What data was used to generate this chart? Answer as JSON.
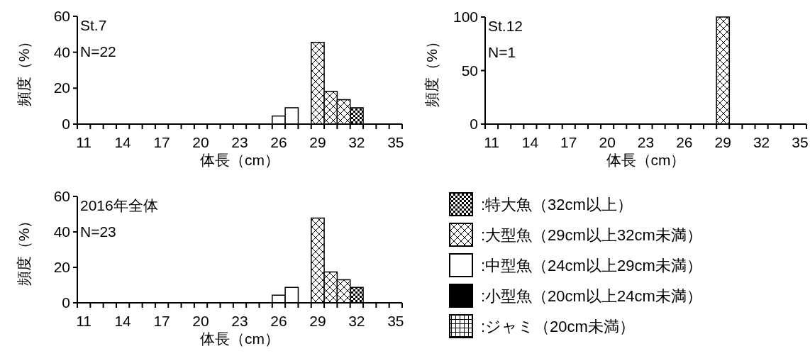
{
  "chart_data": [
    {
      "type": "bar",
      "xlabel": "体長（cm）",
      "ylabel": "頻度（%）",
      "annotations": [
        "St.7",
        "N=22"
      ],
      "categories": [
        "11",
        null,
        null,
        "14",
        null,
        null,
        "17",
        null,
        null,
        "20",
        null,
        null,
        "23",
        null,
        null,
        "26",
        null,
        null,
        "29",
        null,
        null,
        "32",
        null,
        null,
        "35"
      ],
      "ylim": [
        0,
        60
      ],
      "yticks": [
        0,
        20,
        40,
        60
      ],
      "series": [
        {
          "color": "#000000",
          "values": [
            null,
            null,
            null,
            null,
            null,
            null,
            null,
            null,
            null,
            null,
            null,
            null,
            null,
            null,
            null,
            null,
            null,
            null,
            null,
            null,
            null,
            9.1,
            null,
            null,
            null
          ]
        },
        {
          "color": "#000000",
          "values": [
            null,
            null,
            null,
            null,
            null,
            null,
            null,
            null,
            null,
            null,
            null,
            null,
            null,
            null,
            null,
            null,
            null,
            null,
            45.5,
            18.2,
            13.6,
            null,
            null,
            null,
            null
          ]
        },
        {
          "color": "#ffffff",
          "values": [
            null,
            null,
            null,
            null,
            null,
            null,
            null,
            null,
            null,
            null,
            null,
            null,
            null,
            null,
            null,
            4.5,
            9.1,
            null,
            null,
            null,
            null,
            null,
            null,
            null,
            null
          ]
        },
        {
          "color": "#000000",
          "values": [
            null,
            null,
            null,
            null,
            null,
            null,
            null,
            null,
            null,
            null,
            null,
            null,
            null,
            null,
            null,
            null,
            null,
            null,
            null,
            null,
            null,
            null,
            null,
            null,
            null
          ]
        },
        {
          "color": "#000000",
          "values": [
            null,
            null,
            null,
            null,
            null,
            null,
            null,
            null,
            null,
            null,
            null,
            null,
            null,
            null,
            null,
            null,
            null,
            null,
            null,
            null,
            null,
            null,
            null,
            null,
            null
          ]
        }
      ]
    },
    {
      "type": "bar",
      "xlabel": "体長（cm）",
      "ylabel": "頻度（%）",
      "annotations": [
        "St.12",
        "N=1"
      ],
      "categories": [
        "11",
        null,
        null,
        "14",
        null,
        null,
        "17",
        null,
        null,
        "20",
        null,
        null,
        "23",
        null,
        null,
        "26",
        null,
        null,
        "29",
        null,
        null,
        "32",
        null,
        null,
        "35"
      ],
      "ylim": [
        0,
        100
      ],
      "yticks": [
        0,
        50,
        100
      ],
      "series": [
        {
          "color": "#000000",
          "values": [
            null,
            null,
            null,
            null,
            null,
            null,
            null,
            null,
            null,
            null,
            null,
            null,
            null,
            null,
            null,
            null,
            null,
            null,
            null,
            null,
            null,
            null,
            null,
            null,
            null
          ]
        },
        {
          "color": "#000000",
          "values": [
            null,
            null,
            null,
            null,
            null,
            null,
            null,
            null,
            null,
            null,
            null,
            null,
            null,
            null,
            null,
            null,
            null,
            null,
            100,
            null,
            null,
            null,
            null,
            null,
            null
          ]
        },
        {
          "color": "#ffffff",
          "values": [
            null,
            null,
            null,
            null,
            null,
            null,
            null,
            null,
            null,
            null,
            null,
            null,
            null,
            null,
            null,
            null,
            null,
            null,
            null,
            null,
            null,
            null,
            null,
            null,
            null
          ]
        },
        {
          "color": "#000000",
          "values": [
            null,
            null,
            null,
            null,
            null,
            null,
            null,
            null,
            null,
            null,
            null,
            null,
            null,
            null,
            null,
            null,
            null,
            null,
            null,
            null,
            null,
            null,
            null,
            null,
            null
          ]
        },
        {
          "color": "#000000",
          "values": [
            null,
            null,
            null,
            null,
            null,
            null,
            null,
            null,
            null,
            null,
            null,
            null,
            null,
            null,
            null,
            null,
            null,
            null,
            null,
            null,
            null,
            null,
            null,
            null,
            null
          ]
        }
      ]
    },
    {
      "type": "bar",
      "xlabel": "体長（cm）",
      "ylabel": "頻度（%）",
      "annotations": [
        "2016年全体",
        "N=23"
      ],
      "categories": [
        "11",
        null,
        null,
        "14",
        null,
        null,
        "17",
        null,
        null,
        "20",
        null,
        null,
        "23",
        null,
        null,
        "26",
        null,
        null,
        "29",
        null,
        null,
        "32",
        null,
        null,
        "35"
      ],
      "ylim": [
        0,
        60
      ],
      "yticks": [
        0,
        20,
        40,
        60
      ],
      "legend": "right",
      "series": [
        {
          "name": ":特大魚（32cm以上）",
          "color": "#000000",
          "values": [
            null,
            null,
            null,
            null,
            null,
            null,
            null,
            null,
            null,
            null,
            null,
            null,
            null,
            null,
            null,
            null,
            null,
            null,
            null,
            null,
            null,
            8.7,
            null,
            null,
            null
          ]
        },
        {
          "name": ":大型魚（29cm以上32cm未満）",
          "color": "#000000",
          "values": [
            null,
            null,
            null,
            null,
            null,
            null,
            null,
            null,
            null,
            null,
            null,
            null,
            null,
            null,
            null,
            null,
            null,
            null,
            47.8,
            17.4,
            13.0,
            null,
            null,
            null,
            null
          ]
        },
        {
          "name": ":中型魚（24cm以上29cm未満）",
          "color": "#ffffff",
          "values": [
            null,
            null,
            null,
            null,
            null,
            null,
            null,
            null,
            null,
            null,
            null,
            null,
            null,
            null,
            null,
            4.3,
            8.7,
            null,
            null,
            null,
            null,
            null,
            null,
            null,
            null
          ]
        },
        {
          "name": ":小型魚（20cm以上24cm未満）",
          "color": "#000000",
          "values": [
            null,
            null,
            null,
            null,
            null,
            null,
            null,
            null,
            null,
            null,
            null,
            null,
            null,
            null,
            null,
            null,
            null,
            null,
            null,
            null,
            null,
            null,
            null,
            null,
            null
          ]
        },
        {
          "name": ":ジャミ（20cm未満）",
          "color": "#000000",
          "values": [
            null,
            null,
            null,
            null,
            null,
            null,
            null,
            null,
            null,
            null,
            null,
            null,
            null,
            null,
            null,
            null,
            null,
            null,
            null,
            null,
            null,
            null,
            null,
            null,
            null
          ]
        }
      ]
    }
  ]
}
